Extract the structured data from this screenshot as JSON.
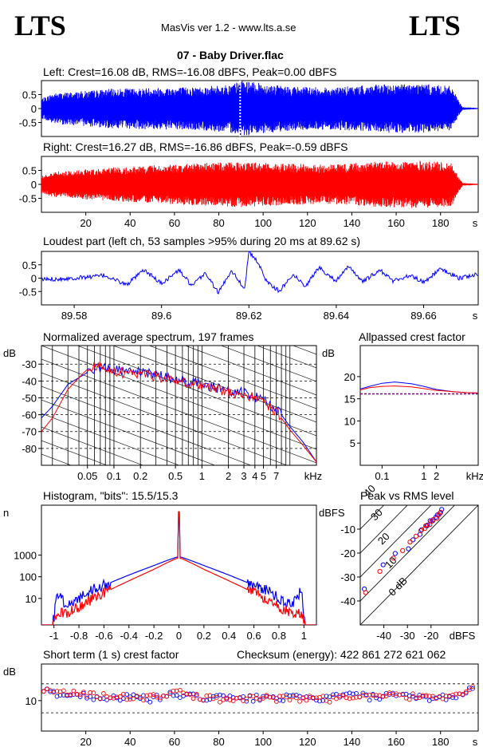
{
  "header": {
    "logo_left": "LTS",
    "logo_right": "LTS",
    "version": "MasVis ver 1.2 - www.lts.a.se",
    "filename": "07 - Baby Driver.flac"
  },
  "colors": {
    "left": "#0000ff",
    "right": "#ff0000",
    "grid": "#000000",
    "bg": "#ffffff"
  },
  "panels": {
    "left": {
      "title": "Left: Crest=16.08 dB, RMS=-16.08 dBFS, Peak=0.00 dBFS"
    },
    "right": {
      "title": "Right: Crest=16.27 dB, RMS=-16.86 dBFS, Peak=-0.59 dBFS"
    },
    "loudest": {
      "title": "Loudest part (left  ch, 53 samples >95% during 20 ms at 89.62 s)"
    },
    "spectrum": {
      "title": "Normalized average spectrum, 197 frames"
    },
    "allpass": {
      "title": "Allpassed crest factor"
    },
    "histogram": {
      "title": "Histogram, \"bits\": 15.5/15.3"
    },
    "pvr": {
      "title": "Peak vs RMS level"
    },
    "stcrest": {
      "title": "Short term (1 s) crest factor",
      "checksum": "Checksum (energy):   422 861 272 621 062"
    }
  },
  "chart_data": [
    {
      "id": "left_waveform",
      "type": "area",
      "title": "Left: Crest=16.08 dB, RMS=-16.08 dBFS, Peak=0.00 dBFS",
      "ytick_labels": [
        "0.5",
        "0",
        "-0.5"
      ],
      "yticks": [
        0.5,
        0,
        -0.5
      ],
      "ylim": [
        -1,
        1
      ],
      "xlim": [
        0,
        197
      ],
      "marker_x": 89.62,
      "envelope_x": [
        0,
        5,
        15,
        30,
        50,
        70,
        85,
        90,
        110,
        130,
        150,
        170,
        185,
        188,
        190,
        197
      ],
      "envelope_y": [
        0.35,
        0.55,
        0.6,
        0.7,
        0.75,
        0.78,
        0.85,
        1.0,
        0.8,
        0.75,
        0.85,
        0.9,
        0.8,
        0.3,
        0.05,
        0.02
      ]
    },
    {
      "id": "right_waveform",
      "type": "area",
      "title": "Right: Crest=16.27 dB, RMS=-16.86 dBFS, Peak=-0.59 dBFS",
      "ytick_labels": [
        "0.5",
        "0",
        "-0.5"
      ],
      "yticks": [
        0.5,
        0,
        -0.5
      ],
      "ylim": [
        -1,
        1
      ],
      "xlim": [
        0,
        197
      ],
      "xtick_labels": [
        "20",
        "40",
        "60",
        "80",
        "100",
        "120",
        "140",
        "160",
        "180",
        "s"
      ],
      "xticks": [
        20,
        40,
        60,
        80,
        100,
        120,
        140,
        160,
        180
      ],
      "envelope_x": [
        0,
        5,
        15,
        30,
        50,
        70,
        85,
        90,
        110,
        130,
        150,
        170,
        185,
        188,
        190,
        197
      ],
      "envelope_y": [
        0.3,
        0.45,
        0.5,
        0.6,
        0.68,
        0.75,
        0.8,
        0.82,
        0.75,
        0.7,
        0.8,
        0.85,
        0.78,
        0.3,
        0.05,
        0.02
      ]
    },
    {
      "id": "loudest_part",
      "type": "line",
      "title": "Loudest part (left  ch, 53 samples >95% during 20 ms at 89.62 s)",
      "ytick_labels": [
        "0.5",
        "0",
        "-0.5"
      ],
      "yticks": [
        0.5,
        0,
        -0.5
      ],
      "ylim": [
        -1,
        1
      ],
      "xlim": [
        89.5725,
        89.6725
      ],
      "xtick_labels": [
        "89.58",
        "89.6",
        "89.62",
        "89.64",
        "89.66",
        "s"
      ],
      "xticks": [
        89.58,
        89.6,
        89.62,
        89.64,
        89.66
      ],
      "x": [
        89.5725,
        89.58,
        89.587,
        89.592,
        89.596,
        89.6,
        89.604,
        89.607,
        89.61,
        89.613,
        89.616,
        89.619,
        89.62,
        89.622,
        89.624,
        89.627,
        89.63,
        89.633,
        89.636,
        89.64,
        89.643,
        89.646,
        89.65,
        89.653,
        89.657,
        89.66,
        89.664,
        89.668,
        89.6725
      ],
      "y": [
        -0.05,
        0.0,
        0.1,
        -0.25,
        0.3,
        -0.2,
        0.3,
        -0.3,
        0.2,
        -0.55,
        0.3,
        -0.4,
        0.98,
        0.6,
        -0.1,
        -0.5,
        0.15,
        -0.3,
        0.4,
        -0.1,
        0.45,
        -0.15,
        0.3,
        -0.1,
        0.1,
        -0.15,
        0.35,
        0.0,
        0.15
      ]
    },
    {
      "id": "spectrum",
      "type": "line",
      "title": "Normalized average spectrum, 197 frames",
      "ylabel": "dB",
      "ytick_labels": [
        "-30",
        "-40",
        "-50",
        "-60",
        "-70",
        "-80"
      ],
      "yticks": [
        -30,
        -40,
        -50,
        -60,
        -70,
        -80
      ],
      "ylim": [
        -90,
        -19
      ],
      "xscale": "log",
      "xlim": [
        0.015,
        20
      ],
      "xtick_labels": [
        "0.05",
        "0.1",
        "0.2",
        "0.5",
        "1",
        "2",
        "3",
        "4",
        "5",
        "7",
        "kHz"
      ],
      "xticks": [
        0.05,
        0.1,
        0.2,
        0.5,
        1,
        2,
        3,
        4,
        5,
        7
      ],
      "series": [
        {
          "color": "blue",
          "x": [
            0.015,
            0.02,
            0.03,
            0.04,
            0.05,
            0.07,
            0.1,
            0.15,
            0.2,
            0.3,
            0.5,
            0.7,
            1,
            1.5,
            2,
            3,
            4,
            5,
            6,
            7,
            8,
            10,
            14,
            20
          ],
          "y": [
            -62,
            -55,
            -42,
            -38,
            -35,
            -33,
            -34,
            -36,
            -35,
            -37,
            -40,
            -41,
            -43,
            -45,
            -47,
            -48,
            -50,
            -52,
            -56,
            -58,
            -60,
            -67,
            -76,
            -88
          ]
        },
        {
          "color": "red",
          "x": [
            0.015,
            0.02,
            0.03,
            0.04,
            0.05,
            0.07,
            0.1,
            0.15,
            0.2,
            0.3,
            0.5,
            0.7,
            1,
            1.5,
            2,
            3,
            4,
            5,
            6,
            7,
            8,
            10,
            14,
            20
          ],
          "y": [
            -70,
            -62,
            -45,
            -38,
            -33,
            -32,
            -35,
            -37,
            -36,
            -38,
            -41,
            -42,
            -44,
            -46,
            -48,
            -49,
            -51,
            -53,
            -57,
            -59,
            -62,
            -69,
            -78,
            -88
          ]
        }
      ]
    },
    {
      "id": "allpass_crest",
      "type": "line",
      "title": "Allpassed crest factor",
      "ylabel": "dB",
      "ytick_labels": [
        "20",
        "15",
        "10",
        "5"
      ],
      "yticks": [
        20,
        15,
        10,
        5
      ],
      "ylim": [
        0,
        27
      ],
      "xscale": "log",
      "xlim": [
        0.03,
        20
      ],
      "xtick_labels": [
        "0.1",
        "1",
        "2",
        "kHz"
      ],
      "xticks": [
        0.1,
        1,
        2
      ],
      "reference": 16.1,
      "series": [
        {
          "color": "blue",
          "x": [
            0.03,
            0.05,
            0.1,
            0.2,
            0.5,
            1,
            2,
            5,
            10,
            20
          ],
          "y": [
            17.2,
            17.8,
            18.5,
            18.8,
            18.4,
            17.8,
            17.1,
            16.6,
            16.4,
            16.3
          ]
        },
        {
          "color": "red",
          "x": [
            0.03,
            0.05,
            0.1,
            0.2,
            0.5,
            1,
            2,
            5,
            10,
            20
          ],
          "y": [
            17.0,
            17.5,
            17.8,
            17.9,
            17.7,
            17.3,
            16.9,
            16.6,
            16.4,
            16.3
          ]
        }
      ]
    },
    {
      "id": "histogram",
      "type": "line",
      "title": "Histogram, \"bits\": 15.5/15.3",
      "ylabel": "n",
      "ytick_labels": [
        "1000",
        "100",
        "10"
      ],
      "yticks": [
        1000,
        100,
        10
      ],
      "yscale": "log",
      "ylim": [
        0.6,
        200000
      ],
      "xlim": [
        -1.1,
        1.1
      ],
      "xtick_labels": [
        "-1",
        "-0.8",
        "-0.6",
        "-0.4",
        "-0.2",
        "0",
        "0.2",
        "0.4",
        "0.6",
        "0.8",
        "1"
      ],
      "xticks": [
        -1,
        -0.8,
        -0.6,
        -0.4,
        -0.2,
        0,
        0.2,
        0.4,
        0.6,
        0.8,
        1
      ],
      "series": [
        {
          "color": "blue",
          "x": [
            -1,
            -0.98,
            -0.9,
            -0.8,
            -0.7,
            -0.6,
            -0.5,
            -0.4,
            -0.3,
            -0.2,
            -0.1,
            -0.02,
            0,
            0.02,
            0.1,
            0.2,
            0.3,
            0.4,
            0.5,
            0.6,
            0.7,
            0.8,
            0.9,
            0.98,
            1
          ],
          "y": [
            1,
            20,
            5,
            10,
            25,
            40,
            70,
            120,
            200,
            330,
            550,
            800,
            100000,
            800,
            550,
            330,
            200,
            120,
            70,
            40,
            25,
            10,
            5,
            25,
            1
          ]
        },
        {
          "color": "red",
          "x": [
            -1,
            -0.98,
            -0.9,
            -0.8,
            -0.7,
            -0.6,
            -0.5,
            -0.4,
            -0.3,
            -0.2,
            -0.1,
            -0.02,
            0,
            0.02,
            0.1,
            0.2,
            0.3,
            0.4,
            0.5,
            0.6,
            0.7,
            0.8,
            0.9,
            0.98,
            1
          ],
          "y": [
            1,
            2,
            2,
            4,
            9,
            18,
            35,
            65,
            120,
            220,
            430,
            700,
            100000,
            700,
            430,
            220,
            120,
            65,
            35,
            18,
            9,
            4,
            2,
            2,
            1
          ]
        }
      ]
    },
    {
      "id": "peak_vs_rms",
      "type": "scatter",
      "title": "Peak vs RMS level",
      "ylabel": "dBFS",
      "xlabel": "dBFS",
      "ytick_labels": [
        "-10",
        "-20",
        "-30",
        "-40"
      ],
      "yticks": [
        -10,
        -20,
        -30,
        -40
      ],
      "ylim": [
        -50,
        0
      ],
      "xtick_labels": [
        "-40",
        "-30",
        "-20"
      ],
      "xticks": [
        -40,
        -30,
        -20
      ],
      "xlim": [
        -50,
        0
      ],
      "diagonal_labels": [
        "40",
        "30",
        "20",
        "10",
        "0 dB"
      ],
      "series": [
        {
          "color": "blue",
          "x": [
            -48,
            -40,
            -35,
            -30,
            -28,
            -25,
            -24,
            -22,
            -21,
            -20,
            -19,
            -18,
            -17,
            -16,
            -15
          ],
          "y": [
            -35,
            -25,
            -20,
            -18,
            -14,
            -12,
            -10,
            -9,
            -8,
            -7,
            -6,
            -5,
            -4,
            -3,
            -2
          ]
        },
        {
          "color": "red",
          "x": [
            -48,
            -42,
            -36,
            -32,
            -29,
            -26,
            -24,
            -23,
            -22,
            -21,
            -20,
            -19,
            -18,
            -17,
            -16
          ],
          "y": [
            -36,
            -28,
            -22,
            -19,
            -15,
            -13,
            -11,
            -10,
            -9,
            -8,
            -7,
            -6,
            -5,
            -4,
            -3
          ]
        }
      ]
    },
    {
      "id": "short_term_crest",
      "type": "scatter",
      "title": "Short term (1 s) crest factor",
      "ylabel": "dB",
      "ytick_labels": [
        "10"
      ],
      "yticks": [
        10
      ],
      "ylim": [
        0,
        22
      ],
      "ref_lines": [
        15.5,
        6
      ],
      "xlim": [
        0,
        197
      ],
      "xtick_labels": [
        "20",
        "40",
        "60",
        "80",
        "100",
        "120",
        "140",
        "160",
        "180",
        "s"
      ],
      "xticks": [
        20,
        40,
        60,
        80,
        100,
        120,
        140,
        160,
        180
      ],
      "series": [
        {
          "color": "blue",
          "x": [
            2,
            10,
            20,
            30,
            40,
            50,
            60,
            70,
            80,
            90,
            100,
            110,
            120,
            130,
            140,
            150,
            160,
            170,
            180,
            188,
            194
          ],
          "y": [
            13,
            12,
            11.5,
            11,
            11,
            10.5,
            12,
            11,
            11,
            10.5,
            11,
            11,
            10.5,
            11,
            12,
            11,
            11.5,
            11,
            11,
            11.5,
            14
          ]
        },
        {
          "color": "red",
          "x": [
            2,
            10,
            20,
            30,
            40,
            50,
            60,
            70,
            80,
            90,
            100,
            110,
            120,
            130,
            140,
            150,
            160,
            170,
            180,
            188,
            194
          ],
          "y": [
            14,
            12.5,
            12,
            11.5,
            11,
            11,
            13,
            11,
            10.5,
            11,
            11,
            10.5,
            11,
            10.5,
            11.5,
            11,
            12,
            11,
            11.5,
            12,
            14.5
          ]
        }
      ]
    }
  ]
}
